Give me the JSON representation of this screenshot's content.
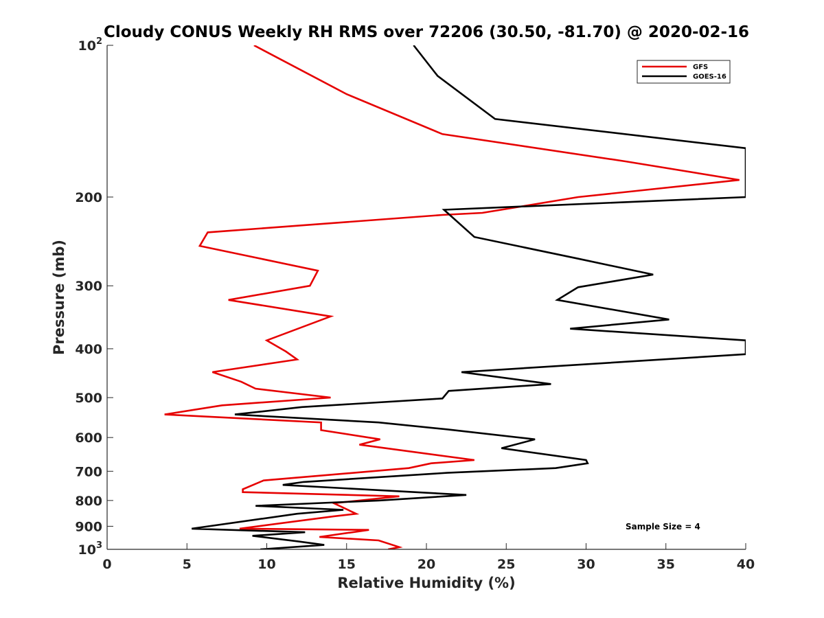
{
  "chart_data": {
    "type": "line",
    "title": "Cloudy CONUS Weekly RH RMS over 72206 (30.50, -81.70) @ 2020-02-16",
    "xlabel": "Relative Humidity (%)",
    "ylabel": "Pressure (mb)",
    "xlim": [
      0,
      40
    ],
    "ylim": [
      100,
      1000
    ],
    "yscale": "log",
    "yreversed": true,
    "grid": false,
    "xticks": [
      0,
      5,
      10,
      15,
      20,
      25,
      30,
      35,
      40
    ],
    "xtick_labels": [
      "0",
      "5",
      "10",
      "15",
      "20",
      "25",
      "30",
      "35",
      "40"
    ],
    "yticks": [
      {
        "value": 100,
        "base": "10",
        "exp": "2"
      },
      {
        "value": 200,
        "base": "200",
        "exp": ""
      },
      {
        "value": 300,
        "base": "300",
        "exp": ""
      },
      {
        "value": 400,
        "base": "400",
        "exp": ""
      },
      {
        "value": 500,
        "base": "500",
        "exp": ""
      },
      {
        "value": 600,
        "base": "600",
        "exp": ""
      },
      {
        "value": 700,
        "base": "700",
        "exp": ""
      },
      {
        "value": 800,
        "base": "800",
        "exp": ""
      },
      {
        "value": 900,
        "base": "900",
        "exp": ""
      },
      {
        "value": 1000,
        "base": "10",
        "exp": "3"
      }
    ],
    "legend": {
      "position": "top-right",
      "entries": [
        "GFS",
        "GOES-16"
      ]
    },
    "annotation": "Sample Size = 4",
    "series": [
      {
        "name": "GFS",
        "color": "#e60000",
        "points": [
          [
            9.2,
            100
          ],
          [
            15.0,
            125
          ],
          [
            21.0,
            150
          ],
          [
            32.5,
            170
          ],
          [
            39.6,
            185
          ],
          [
            29.5,
            200
          ],
          [
            23.5,
            215
          ],
          [
            21.0,
            217
          ],
          [
            6.3,
            235
          ],
          [
            5.8,
            250
          ],
          [
            13.2,
            280
          ],
          [
            12.7,
            300
          ],
          [
            7.6,
            320
          ],
          [
            14.0,
            345
          ],
          [
            10.0,
            385
          ],
          [
            11.2,
            405
          ],
          [
            11.9,
            420
          ],
          [
            6.6,
            445
          ],
          [
            8.4,
            465
          ],
          [
            9.3,
            480
          ],
          [
            14.0,
            500
          ],
          [
            7.2,
            518
          ],
          [
            3.6,
            540
          ],
          [
            13.4,
            560
          ],
          [
            13.4,
            580
          ],
          [
            17.1,
            605
          ],
          [
            15.8,
            620
          ],
          [
            23.0,
            665
          ],
          [
            20.3,
            675
          ],
          [
            18.9,
            690
          ],
          [
            9.8,
            730
          ],
          [
            8.5,
            760
          ],
          [
            8.5,
            770
          ],
          [
            18.3,
            785
          ],
          [
            14.2,
            810
          ],
          [
            15.6,
            850
          ],
          [
            14.2,
            860
          ],
          [
            8.3,
            910
          ],
          [
            16.4,
            915
          ],
          [
            13.3,
            945
          ],
          [
            17.0,
            960
          ],
          [
            18.3,
            990
          ],
          [
            17.6,
            1000
          ]
        ]
      },
      {
        "name": "GOES-16",
        "color": "#000000",
        "points": [
          [
            19.2,
            100
          ],
          [
            20.7,
            115
          ],
          [
            24.3,
            140
          ],
          [
            40.0,
            160
          ],
          [
            40.0,
            200
          ],
          [
            21.1,
            212
          ],
          [
            23.0,
            240
          ],
          [
            29.5,
            265
          ],
          [
            34.2,
            285
          ],
          [
            29.5,
            302
          ],
          [
            28.2,
            320
          ],
          [
            35.2,
            350
          ],
          [
            29.0,
            365
          ],
          [
            40.0,
            385
          ],
          [
            40.0,
            410
          ],
          [
            22.2,
            445
          ],
          [
            27.8,
            470
          ],
          [
            21.4,
            485
          ],
          [
            21.0,
            502
          ],
          [
            12.2,
            522
          ],
          [
            8.0,
            540
          ],
          [
            17.0,
            560
          ],
          [
            21.3,
            578
          ],
          [
            26.8,
            605
          ],
          [
            24.7,
            630
          ],
          [
            30.0,
            665
          ],
          [
            30.1,
            675
          ],
          [
            28.1,
            690
          ],
          [
            21.3,
            705
          ],
          [
            12.3,
            735
          ],
          [
            11.0,
            745
          ],
          [
            22.5,
            780
          ],
          [
            17.0,
            800
          ],
          [
            9.3,
            820
          ],
          [
            14.8,
            835
          ],
          [
            11.9,
            850
          ],
          [
            5.3,
            910
          ],
          [
            12.4,
            925
          ],
          [
            9.1,
            940
          ],
          [
            12.0,
            965
          ],
          [
            13.6,
            980
          ],
          [
            9.6,
            1000
          ]
        ]
      }
    ]
  }
}
